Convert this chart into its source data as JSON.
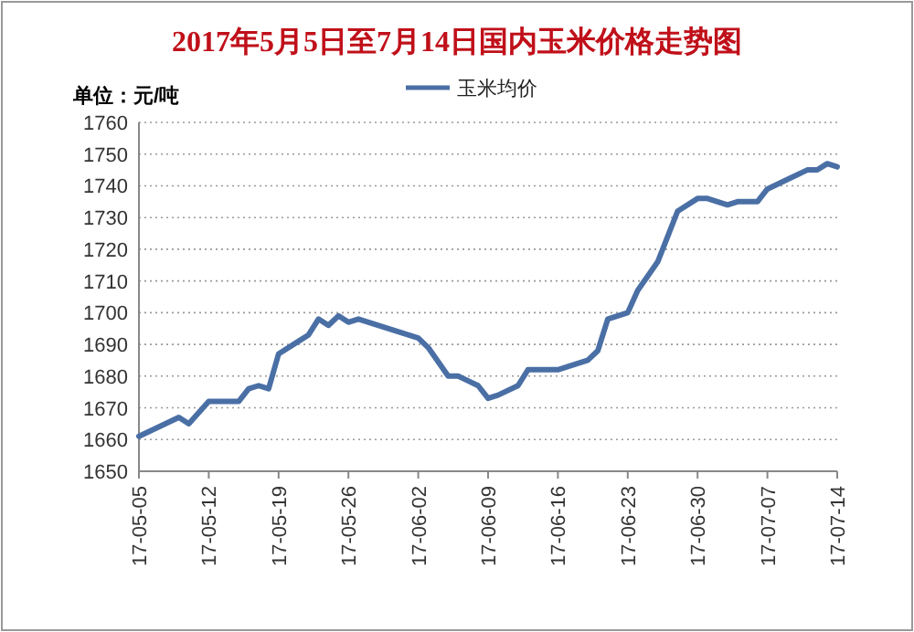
{
  "chart_data": {
    "type": "line",
    "title": "2017年5月5日至7月14日国内玉米价格走势图",
    "ylabel": "单位：元/吨",
    "x": [
      "2017-05-05",
      "2017-05-09",
      "2017-05-10",
      "2017-05-12",
      "2017-05-15",
      "2017-05-16",
      "2017-05-17",
      "2017-05-18",
      "2017-05-19",
      "2017-05-21",
      "2017-05-22",
      "2017-05-23",
      "2017-05-24",
      "2017-05-25",
      "2017-05-26",
      "2017-05-27",
      "2017-06-02",
      "2017-06-03",
      "2017-06-05",
      "2017-06-06",
      "2017-06-08",
      "2017-06-09",
      "2017-06-10",
      "2017-06-12",
      "2017-06-13",
      "2017-06-16",
      "2017-06-19",
      "2017-06-20",
      "2017-06-21",
      "2017-06-23",
      "2017-06-24",
      "2017-06-26",
      "2017-06-28",
      "2017-06-30",
      "2017-07-01",
      "2017-07-03",
      "2017-07-04",
      "2017-07-06",
      "2017-07-07",
      "2017-07-09",
      "2017-07-11",
      "2017-07-12",
      "2017-07-13",
      "2017-07-14"
    ],
    "series": [
      {
        "name": "玉米均价",
        "color": "#4a6fa5",
        "values": [
          1661,
          1667,
          1665,
          1672,
          1672,
          1676,
          1677,
          1676,
          1687,
          1691,
          1693,
          1698,
          1696,
          1699,
          1697,
          1698,
          1692,
          1689,
          1680,
          1680,
          1677,
          1673,
          1674,
          1677,
          1682,
          1682,
          1685,
          1688,
          1698,
          1700,
          1707,
          1716,
          1732,
          1736,
          1736,
          1734,
          1735,
          1735,
          1739,
          1742,
          1745,
          1745,
          1747,
          1746
        ]
      }
    ],
    "xlim": [
      "2017-05-05",
      "2017-07-14"
    ],
    "xticks": [
      {
        "value": "2017-05-05",
        "label": "17-05-05"
      },
      {
        "value": "2017-05-12",
        "label": "17-05-12"
      },
      {
        "value": "2017-05-19",
        "label": "17-05-19"
      },
      {
        "value": "2017-05-26",
        "label": "17-05-26"
      },
      {
        "value": "2017-06-02",
        "label": "17-06-02"
      },
      {
        "value": "2017-06-09",
        "label": "17-06-09"
      },
      {
        "value": "2017-06-16",
        "label": "17-06-16"
      },
      {
        "value": "2017-06-23",
        "label": "17-06-23"
      },
      {
        "value": "2017-06-30",
        "label": "17-06-30"
      },
      {
        "value": "2017-07-07",
        "label": "17-07-07"
      },
      {
        "value": "2017-07-14",
        "label": "17-07-14"
      }
    ],
    "ylim": [
      1650,
      1760
    ],
    "yticks": [
      1650,
      1660,
      1670,
      1680,
      1690,
      1700,
      1710,
      1720,
      1730,
      1740,
      1750,
      1760
    ],
    "grid": "y",
    "legend": "top",
    "line_style": "solid"
  }
}
